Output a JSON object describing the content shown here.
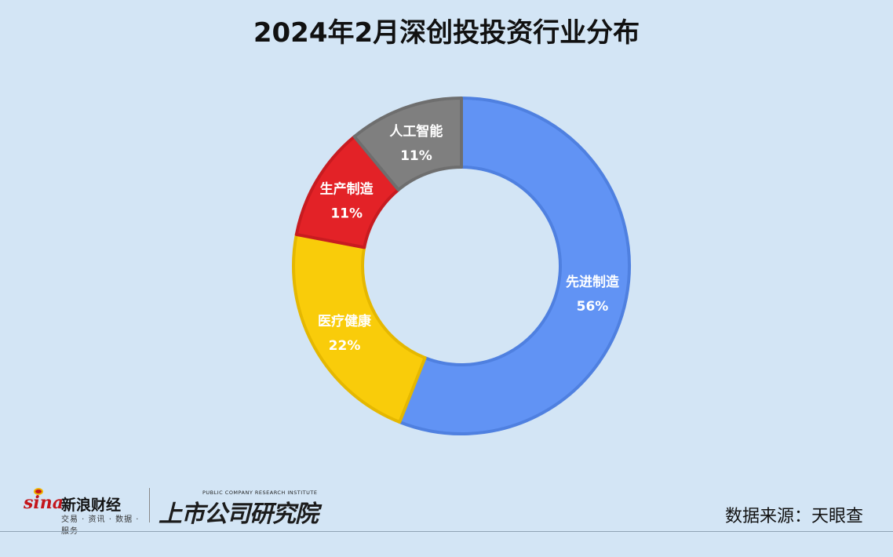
{
  "page": {
    "title": "2024年2月深创投投资行业分布",
    "source": "数据来源：天眼查",
    "logos": {
      "sina_en": "sina",
      "sina_cn": "新浪财经",
      "sina_sub": "交易 · 资讯 · 数据 · 服务",
      "institute_en": "PUBLIC COMPANY RESEARCH INSTITUTE",
      "institute_cn": "上市公司研究院"
    }
  },
  "chart_data": {
    "type": "pie",
    "donut": true,
    "title": "2024年2月深创投投资行业分布",
    "legend": "none",
    "slices": [
      {
        "label": "先进制造",
        "value": 56,
        "value_label": "56%",
        "color": "#6193f4",
        "border": "#4f80e0"
      },
      {
        "label": "医疗健康",
        "value": 22,
        "value_label": "22%",
        "color": "#f9cc0a",
        "border": "#e5b800"
      },
      {
        "label": "生产制造",
        "value": 11,
        "value_label": "11%",
        "color": "#e32227",
        "border": "#c81b20"
      },
      {
        "label": "人工智能",
        "value": 11,
        "value_label": "11%",
        "color": "#7f7f7f",
        "border": "#6e6e6e"
      }
    ]
  }
}
